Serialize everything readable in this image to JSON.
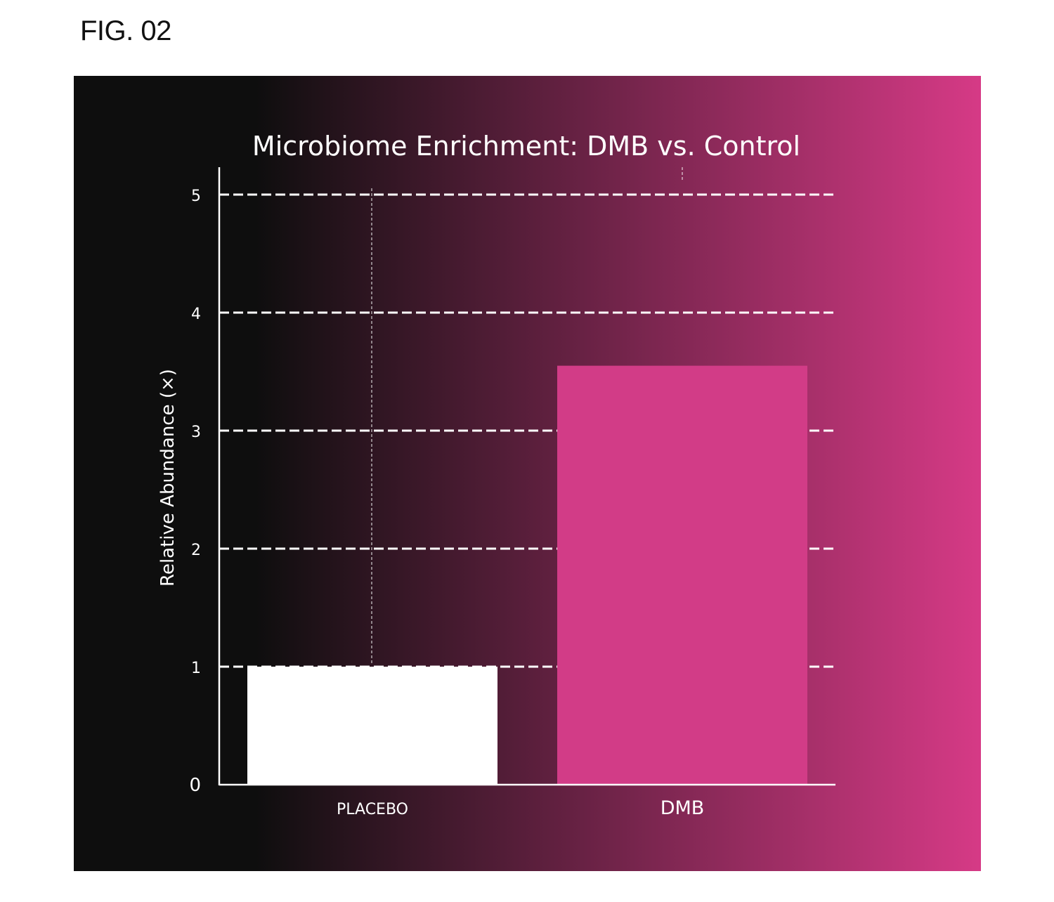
{
  "figure_label": "FIG. 02",
  "colors": {
    "background_start": "#0e0e0e",
    "background_end": "#d63a86",
    "placebo_bar": "#ffffff",
    "dmb_bar": "#d23c87",
    "text": "#ffffff",
    "gridline": "#ffffff"
  },
  "chart_data": {
    "type": "bar",
    "title": "Microbiome Enrichment: DMB vs. Control",
    "xlabel": "",
    "ylabel": "Relative Abundance (×)",
    "categories": [
      "PLACEBO",
      "DMB"
    ],
    "values": [
      1.0,
      3.55
    ],
    "ylim": [
      0,
      5.2
    ],
    "yticks": [
      0,
      1,
      2,
      3,
      4,
      5
    ],
    "grid": "horizontal dashed",
    "legend": "none"
  }
}
